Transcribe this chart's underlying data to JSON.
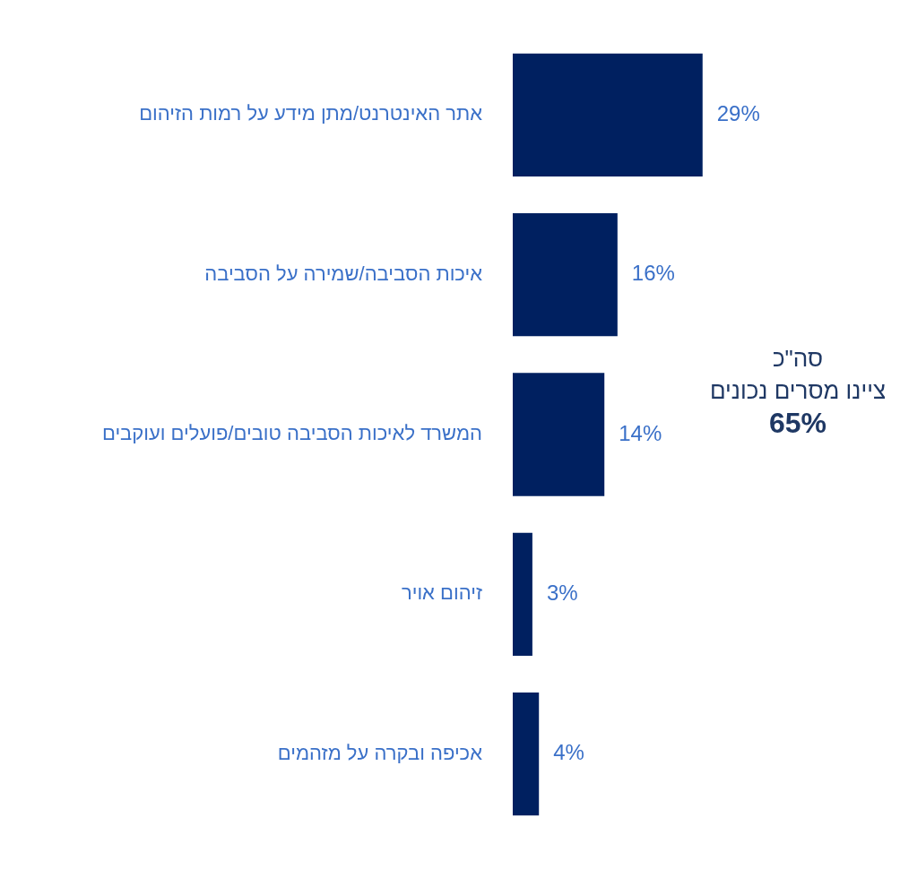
{
  "chart_data": {
    "type": "bar",
    "orientation": "horizontal",
    "categories": [
      "אתר האינטרנט/מתן מידע על רמות הזיהום",
      "איכות הסביבה/שמירה על הסביבה",
      "המשרד לאיכות הסביבה טובים/פועלים ועוקבים",
      "זיהום אויר",
      "אכיפה ובקרה על מזהמים"
    ],
    "values": [
      29,
      16,
      14,
      3,
      4
    ],
    "value_labels": [
      "29%",
      "16%",
      "14%",
      "3%",
      "4%"
    ],
    "color": "#002060",
    "annotations": [
      "סה\"כ\nציינו מסרים נכונים\n65%"
    ]
  }
}
